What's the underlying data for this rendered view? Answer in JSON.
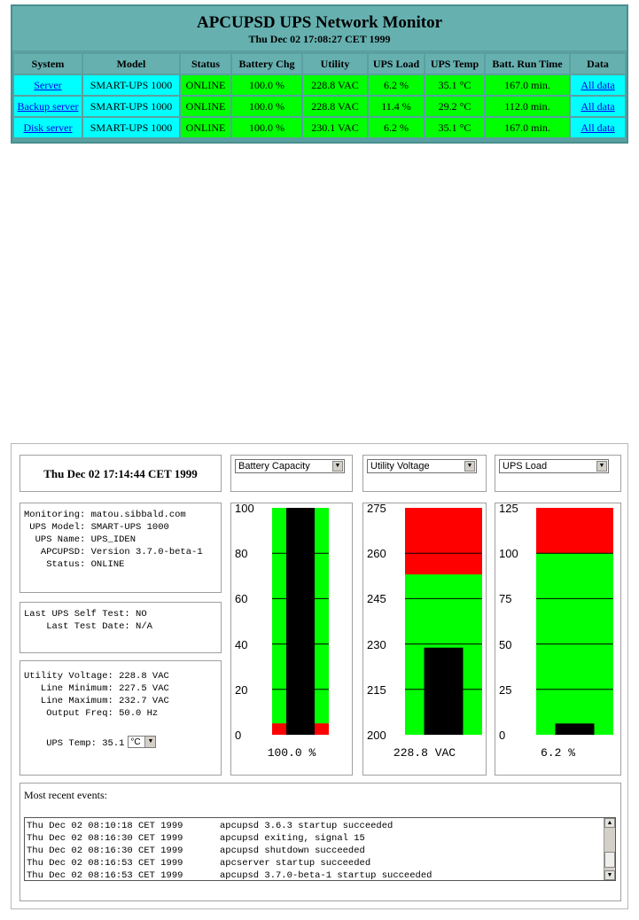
{
  "monitor": {
    "title": "APCUPSD UPS Network Monitor",
    "date": "Thu Dec 02 17:08:27 CET 1999",
    "columns": [
      "System",
      "Model",
      "Status",
      "Battery Chg",
      "Utility",
      "UPS Load",
      "UPS Temp",
      "Batt. Run Time",
      "Data"
    ],
    "rows": [
      [
        "Server",
        "SMART-UPS 1000",
        "ONLINE",
        "100.0 %",
        "228.8 VAC",
        "6.2 %",
        "35.1 °C",
        "167.0 min.",
        "All data"
      ],
      [
        "Backup server",
        "SMART-UPS 1000",
        "ONLINE",
        "100.0 %",
        "228.8 VAC",
        "11.4 %",
        "29.2 °C",
        "112.0 min.",
        "All data"
      ],
      [
        "Disk server",
        "SMART-UPS 1000",
        "ONLINE",
        "100.0 %",
        "230.1 VAC",
        "6.2 %",
        "35.1 °C",
        "167.0 min.",
        "All data"
      ]
    ]
  },
  "panel": {
    "date": "Thu Dec 02 17:14:44 CET 1999",
    "info": [
      "Monitoring: matou.sibbald.com",
      " UPS Model: SMART-UPS 1000",
      "  UPS Name: UPS_IDEN",
      "   APCUPSD: Version 3.7.0-beta-1",
      "    Status: ONLINE"
    ],
    "selftest": [
      "Last UPS Self Test: NO",
      "    Last Test Date: N/A"
    ],
    "voltage": [
      "Utility Voltage: 228.8 VAC",
      "   Line Minimum: 227.5 VAC",
      "   Line Maximum: 232.7 VAC",
      "    Output Freq: 50.0 Hz"
    ],
    "temp_label": "    UPS Temp: 35.1",
    "temp_unit": "°C",
    "gauges": [
      {
        "select": "Battery Capacity",
        "ticks": [
          "100",
          "80",
          "60",
          "40",
          "20",
          "0"
        ],
        "min": 0,
        "max": 100,
        "value": 100.0,
        "red_low": 5,
        "red_high": null,
        "readout": "100.0 %"
      },
      {
        "select": "Utility Voltage",
        "ticks": [
          "275",
          "260",
          "245",
          "230",
          "215",
          "200"
        ],
        "min": 200,
        "max": 275,
        "value": 228.8,
        "red_low": null,
        "red_high": 253,
        "readout": "228.8 VAC"
      },
      {
        "select": "UPS Load",
        "ticks": [
          "125",
          "100",
          "75",
          "50",
          "25",
          "0"
        ],
        "min": 0,
        "max": 125,
        "value": 6.2,
        "red_low": null,
        "red_high": 100,
        "readout": "6.2 %"
      }
    ],
    "events_label": "Most recent events:",
    "events": [
      {
        "date": "Thu Dec 02 08:10:18 CET 1999",
        "msg": "apcupsd 3.6.3 startup succeeded"
      },
      {
        "date": "Thu Dec 02 08:16:30 CET 1999",
        "msg": "apcupsd exiting, signal 15"
      },
      {
        "date": "Thu Dec 02 08:16:30 CET 1999",
        "msg": "apcupsd shutdown succeeded"
      },
      {
        "date": "Thu Dec 02 08:16:53 CET 1999",
        "msg": "apcserver startup succeeded"
      },
      {
        "date": "Thu Dec 02 08:16:53 CET 1999",
        "msg": "apcupsd 3.7.0-beta-1 startup succeeded"
      }
    ]
  },
  "colors": {
    "ok": "#00ff00",
    "warn": "#ff0000",
    "bar": "#000000",
    "cyan": "#00ffff",
    "teal": "#66b0b0"
  },
  "icons": {
    "dropdown": "dropdown-arrow-icon",
    "scroll_up": "scroll-up-icon",
    "scroll_down": "scroll-down-icon"
  }
}
